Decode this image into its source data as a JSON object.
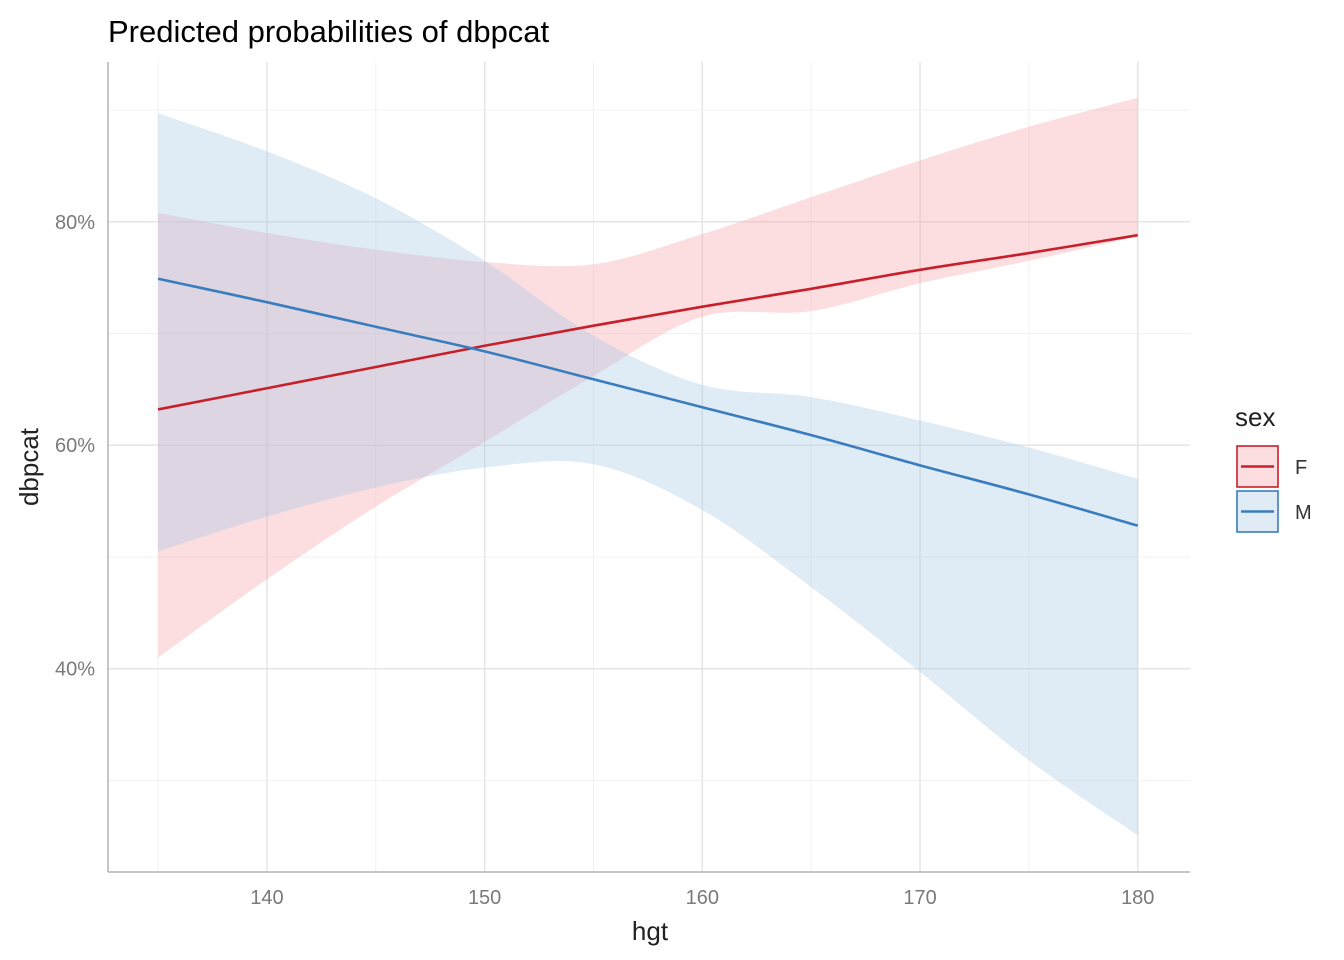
{
  "chart_data": {
    "type": "line",
    "title": "Predicted probabilities of dbpcat",
    "xlabel": "hgt",
    "ylabel": "dbpcat",
    "xlim": [
      132.7,
      182.4
    ],
    "ylim": [
      0.218,
      0.943
    ],
    "x_ticks": [
      140,
      150,
      160,
      170,
      180
    ],
    "x_tick_labels": [
      "140",
      "150",
      "160",
      "170",
      "180"
    ],
    "y_ticks": [
      0.4,
      0.6,
      0.8
    ],
    "y_tick_labels": [
      "40%",
      "60%",
      "80%"
    ],
    "grid": true,
    "legend": {
      "title": "sex",
      "position": "right"
    },
    "series": [
      {
        "name": "F",
        "color": "#C8202B",
        "ribbon_color": "#F6A5AD",
        "x": [
          135,
          140,
          145,
          150,
          155,
          160,
          165,
          170,
          175,
          180
        ],
        "y": [
          0.632,
          0.651,
          0.67,
          0.689,
          0.707,
          0.724,
          0.74,
          0.757,
          0.772,
          0.788
        ],
        "lower": [
          0.41,
          0.48,
          0.545,
          0.603,
          0.662,
          0.715,
          0.72,
          0.745,
          0.765,
          0.787
        ],
        "upper": [
          0.808,
          0.79,
          0.775,
          0.764,
          0.762,
          0.789,
          0.822,
          0.855,
          0.885,
          0.911
        ]
      },
      {
        "name": "M",
        "color": "#3A7DBF",
        "ribbon_color": "#A9C8E5",
        "x": [
          135,
          140,
          145,
          150,
          155,
          160,
          165,
          170,
          175,
          180
        ],
        "y": [
          0.749,
          0.728,
          0.706,
          0.684,
          0.659,
          0.634,
          0.609,
          0.582,
          0.556,
          0.528
        ],
        "lower": [
          0.505,
          0.536,
          0.562,
          0.58,
          0.583,
          0.542,
          0.473,
          0.397,
          0.318,
          0.251
        ],
        "upper": [
          0.897,
          0.863,
          0.821,
          0.765,
          0.698,
          0.654,
          0.643,
          0.622,
          0.598,
          0.57
        ]
      }
    ]
  }
}
